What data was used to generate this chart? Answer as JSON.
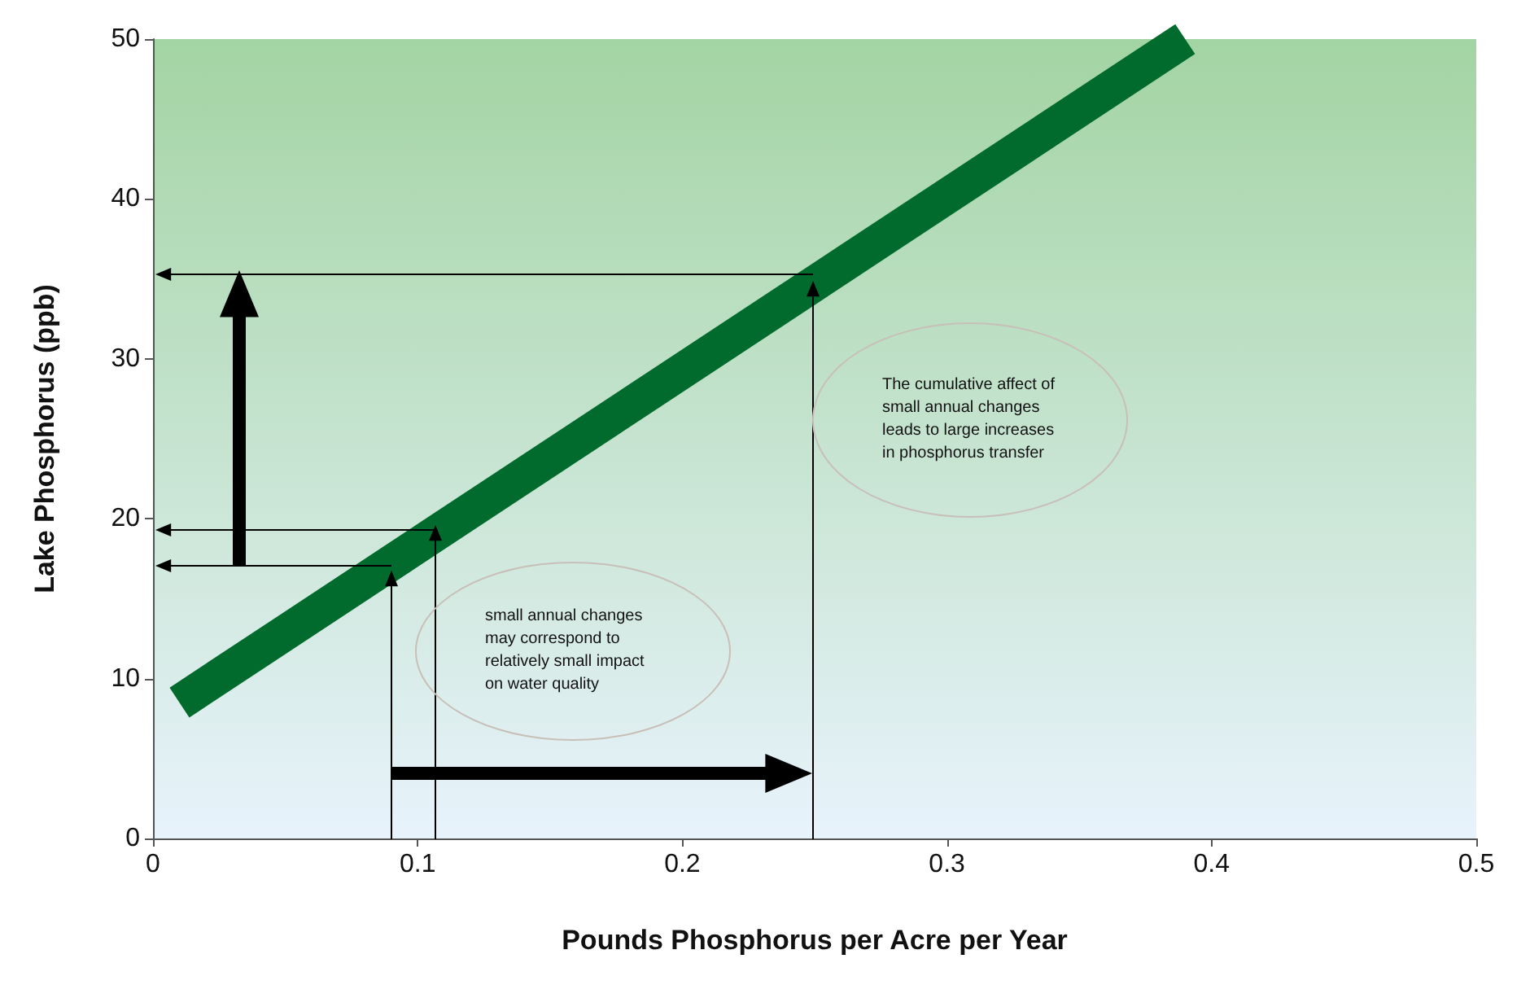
{
  "chart_data": {
    "type": "line",
    "xlabel": "Pounds Phosphorus per Acre per Year",
    "ylabel": "Lake Phosphorus (ppb)",
    "xlim": [
      0,
      0.5
    ],
    "xticks": [
      0,
      0.1,
      0.2,
      0.3,
      0.4,
      0.5
    ],
    "ylim": [
      0,
      50
    ],
    "yticks": [
      0,
      10,
      20,
      30,
      40,
      50
    ],
    "grid": false,
    "marker": "none",
    "annotations": [
      "small annual changes may correspond to relatively small impact on water quality",
      "The cumulative affect of small annual changes leads to large increases in phosphorus transfer"
    ],
    "series": [
      {
        "color": "#006b2d",
        "x": [
          0.01,
          0.39
        ],
        "values": [
          8.5,
          50
        ]
      }
    ]
  }
}
